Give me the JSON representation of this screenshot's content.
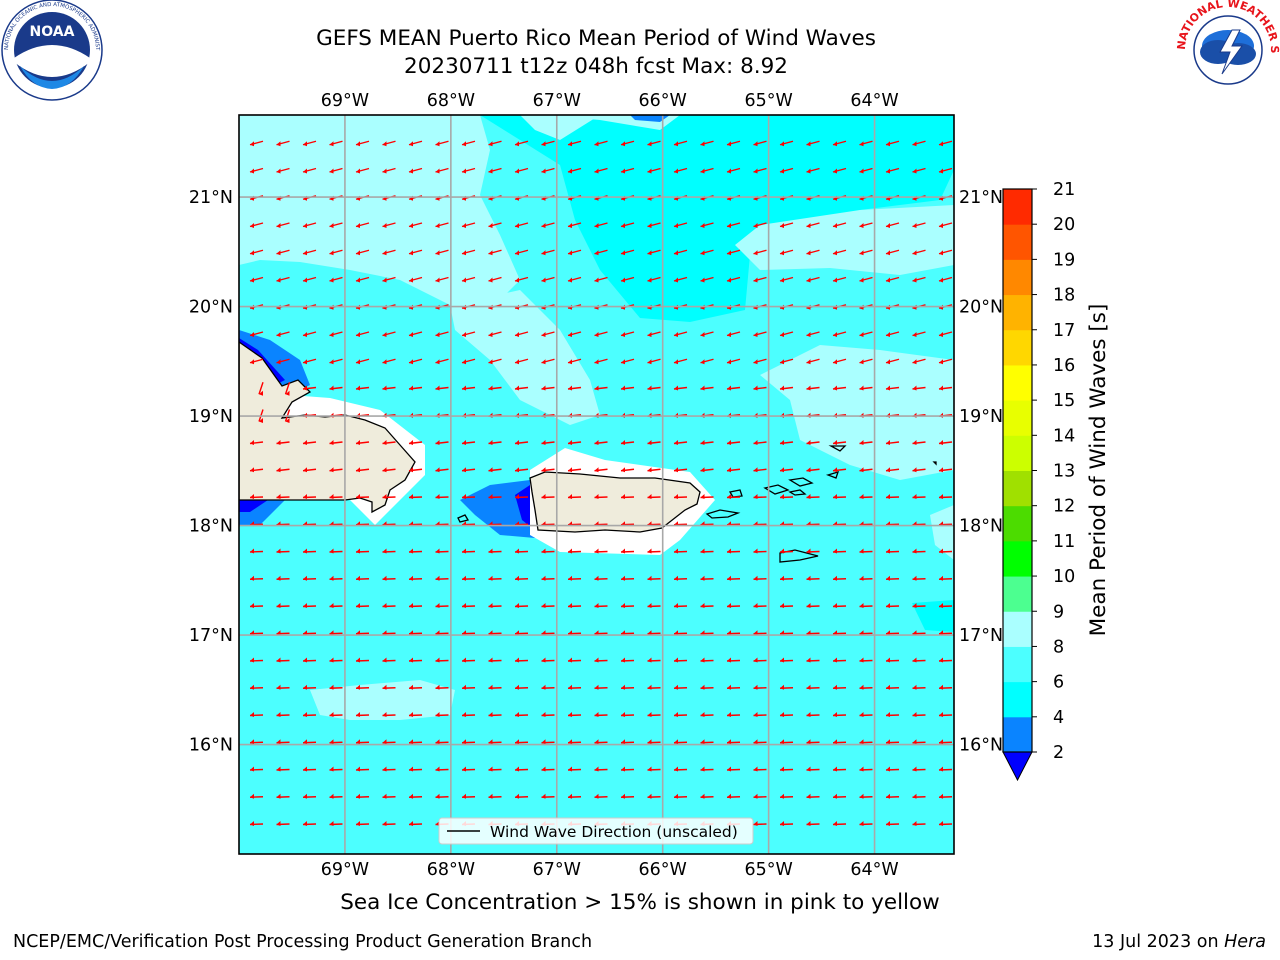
{
  "header": {
    "title_line1": "GEFS MEAN Puerto Rico Mean Period of Wind Waves",
    "title_line2": "20230711 t12z 048h fcst   Max: 8.92"
  },
  "logos": {
    "noaa_text": "NOAA",
    "noaa_ring_text": "NATIONAL OCEANIC AND ATMOSPHERIC ADMINISTRATION · U.S. DEPARTMENT OF COMMERCE",
    "nws_ring_text": "NATIONAL WEATHER SERVICE"
  },
  "map": {
    "lon_ticks": [
      "69°W",
      "68°W",
      "67°W",
      "66°W",
      "65°W",
      "64°W"
    ],
    "lat_ticks": [
      "21°N",
      "20°N",
      "19°N",
      "18°N",
      "17°N",
      "16°N"
    ],
    "lon_values": [
      -69,
      -68,
      -67,
      -66,
      -65,
      -64
    ],
    "lat_values": [
      21,
      20,
      19,
      18,
      17,
      16
    ],
    "extent": {
      "lon_min": -70,
      "lon_max": -63.25,
      "lat_min": 15,
      "lat_max": 21.75
    },
    "legend_label": "Wind Wave Direction (unscaled)",
    "arrow_color": "#ff0000",
    "ocean_base_color": "#4cffff",
    "land_color": "#efecdc"
  },
  "colorbar": {
    "label": "Mean Period of Wind Waves [s]",
    "tick_labels": [
      "2",
      "4",
      "6",
      "8",
      "9",
      "10",
      "11",
      "12",
      "13",
      "14",
      "15",
      "16",
      "17",
      "18",
      "19",
      "20",
      "21"
    ],
    "levels": [
      2,
      4,
      6,
      8,
      9,
      10,
      11,
      12,
      13,
      14,
      15,
      16,
      17,
      18,
      19,
      20,
      21
    ],
    "extend_color": "#0000ff",
    "band_colors": [
      "#0a84ff",
      "#00ffff",
      "#4cffff",
      "#aaffff",
      "#4cff90",
      "#00ff00",
      "#4cdc00",
      "#a0e000",
      "#ccff00",
      "#e8ff00",
      "#ffff00",
      "#ffd700",
      "#ffb300",
      "#ff8800",
      "#ff5500",
      "#ff2a00",
      "#ff0000"
    ]
  },
  "note": "Sea Ice Concentration > 15% is shown in pink to yellow",
  "footer": {
    "left": "NCEP/EMC/Verification Post Processing Product Generation Branch",
    "right_date": "13 Jul 2023 on",
    "right_host": "Hera"
  }
}
